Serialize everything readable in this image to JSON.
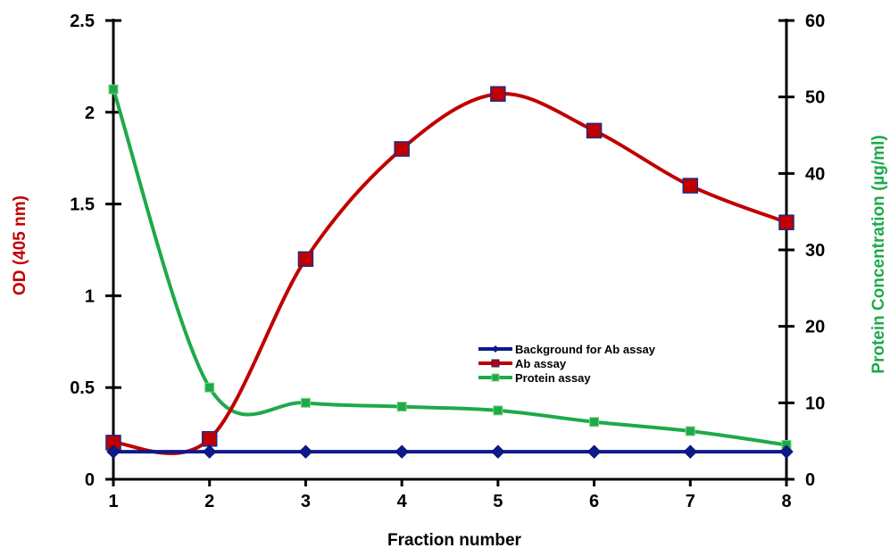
{
  "chart_data": {
    "type": "line",
    "xlabel": "Fraction number",
    "ylabel": "OD (405 nm)",
    "y2label": "Protein Concentration (µg/ml)",
    "x": [
      1,
      2,
      3,
      4,
      5,
      6,
      7,
      8
    ],
    "xlim": [
      1,
      8
    ],
    "ylim": [
      0,
      2.5
    ],
    "y2lim": [
      0,
      60
    ],
    "x_ticks": [
      "1",
      "2",
      "3",
      "4",
      "5",
      "6",
      "7",
      "8"
    ],
    "y_ticks": [
      "0",
      "0.5",
      "1",
      "1.5",
      "2",
      "2.5"
    ],
    "y2_ticks": [
      "0",
      "10",
      "20",
      "30",
      "40",
      "50",
      "60"
    ],
    "grid": false,
    "legend_position": "center-right",
    "series": [
      {
        "name": "Background for Ab assay",
        "axis": "left",
        "color": "#0d1a8c",
        "marker": "diamond",
        "values": [
          0.15,
          0.15,
          0.15,
          0.15,
          0.15,
          0.15,
          0.15,
          0.15
        ]
      },
      {
        "name": "Ab assay",
        "axis": "left",
        "color": "#c00000",
        "marker": "square",
        "values": [
          0.2,
          0.22,
          1.2,
          1.8,
          2.1,
          1.9,
          1.6,
          1.4
        ]
      },
      {
        "name": "Protein assay",
        "axis": "right",
        "color": "#1daa4a",
        "marker": "square-small",
        "values": [
          51,
          12,
          10,
          9.5,
          9,
          7.5,
          6.3,
          4.5
        ]
      }
    ]
  }
}
